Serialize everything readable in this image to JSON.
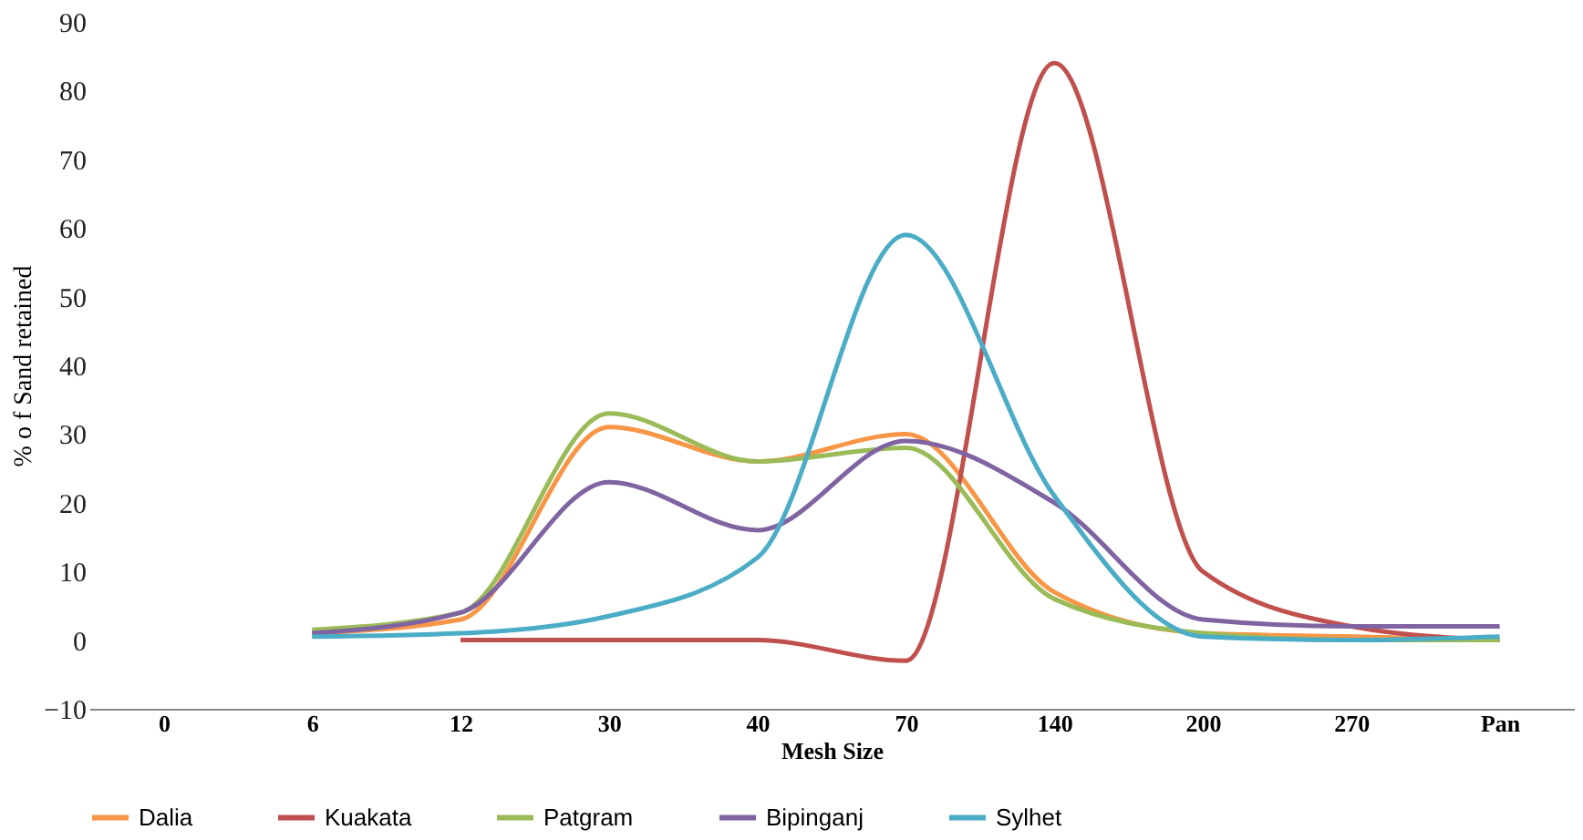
{
  "chart_data": {
    "type": "line",
    "xlabel": "Mesh Size",
    "ylabel": "% o f Sand retained",
    "categories": [
      "0",
      "6",
      "12",
      "30",
      "40",
      "70",
      "140",
      "200",
      "270",
      "Pan"
    ],
    "ylim": [
      -10,
      90
    ],
    "yticks": [
      -10,
      0,
      10,
      20,
      30,
      40,
      50,
      60,
      70,
      80,
      90
    ],
    "grid": false,
    "legend": "bottom",
    "marker": "none",
    "line_style": "solid",
    "series": [
      {
        "name": "Dalia",
        "color": "#f79646",
        "values": [
          null,
          1,
          3,
          31,
          26,
          30,
          7,
          1,
          0.5,
          0
        ]
      },
      {
        "name": "Kuakata",
        "color": "#c0504d",
        "values": [
          null,
          null,
          0,
          0,
          0,
          -3,
          84,
          10,
          2,
          0
        ]
      },
      {
        "name": "Patgram",
        "color": "#9bbb59",
        "values": [
          null,
          1.5,
          4,
          33,
          26,
          28,
          6,
          1,
          0,
          0
        ]
      },
      {
        "name": "Bipinganj",
        "color": "#8064a2",
        "values": [
          null,
          1,
          4,
          23,
          16,
          29,
          20,
          3,
          2,
          2
        ]
      },
      {
        "name": "Sylhet",
        "color": "#4bacc6",
        "values": [
          null,
          0.5,
          1,
          3.5,
          12,
          59,
          21,
          0.5,
          0,
          0.5
        ]
      }
    ]
  }
}
